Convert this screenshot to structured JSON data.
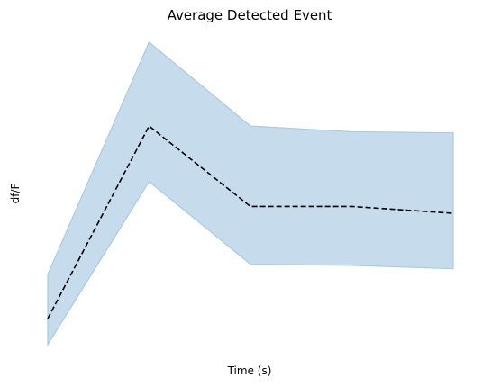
{
  "chart_data": {
    "type": "line",
    "title": "Average Detected Event",
    "xlabel": "Time (s)",
    "ylabel": "df/F",
    "x": [
      0,
      1,
      2,
      3,
      4
    ],
    "series": [
      {
        "values": [
          -0.85,
          0.85,
          0.14,
          0.14,
          0.08
        ],
        "lower": [
          -1.08,
          0.36,
          -0.37,
          -0.38,
          -0.41
        ],
        "upper": [
          -0.46,
          1.59,
          0.85,
          0.8,
          0.79
        ],
        "line_color": "#000000",
        "line_style": "dashed",
        "band_fill": "#c6dcec",
        "band_edge": "#a9cbe3"
      }
    ],
    "xlim": [
      0,
      4
    ],
    "ylim": [
      -1.08,
      1.59
    ],
    "grid": false,
    "axes_visible": false,
    "legend": "none"
  }
}
